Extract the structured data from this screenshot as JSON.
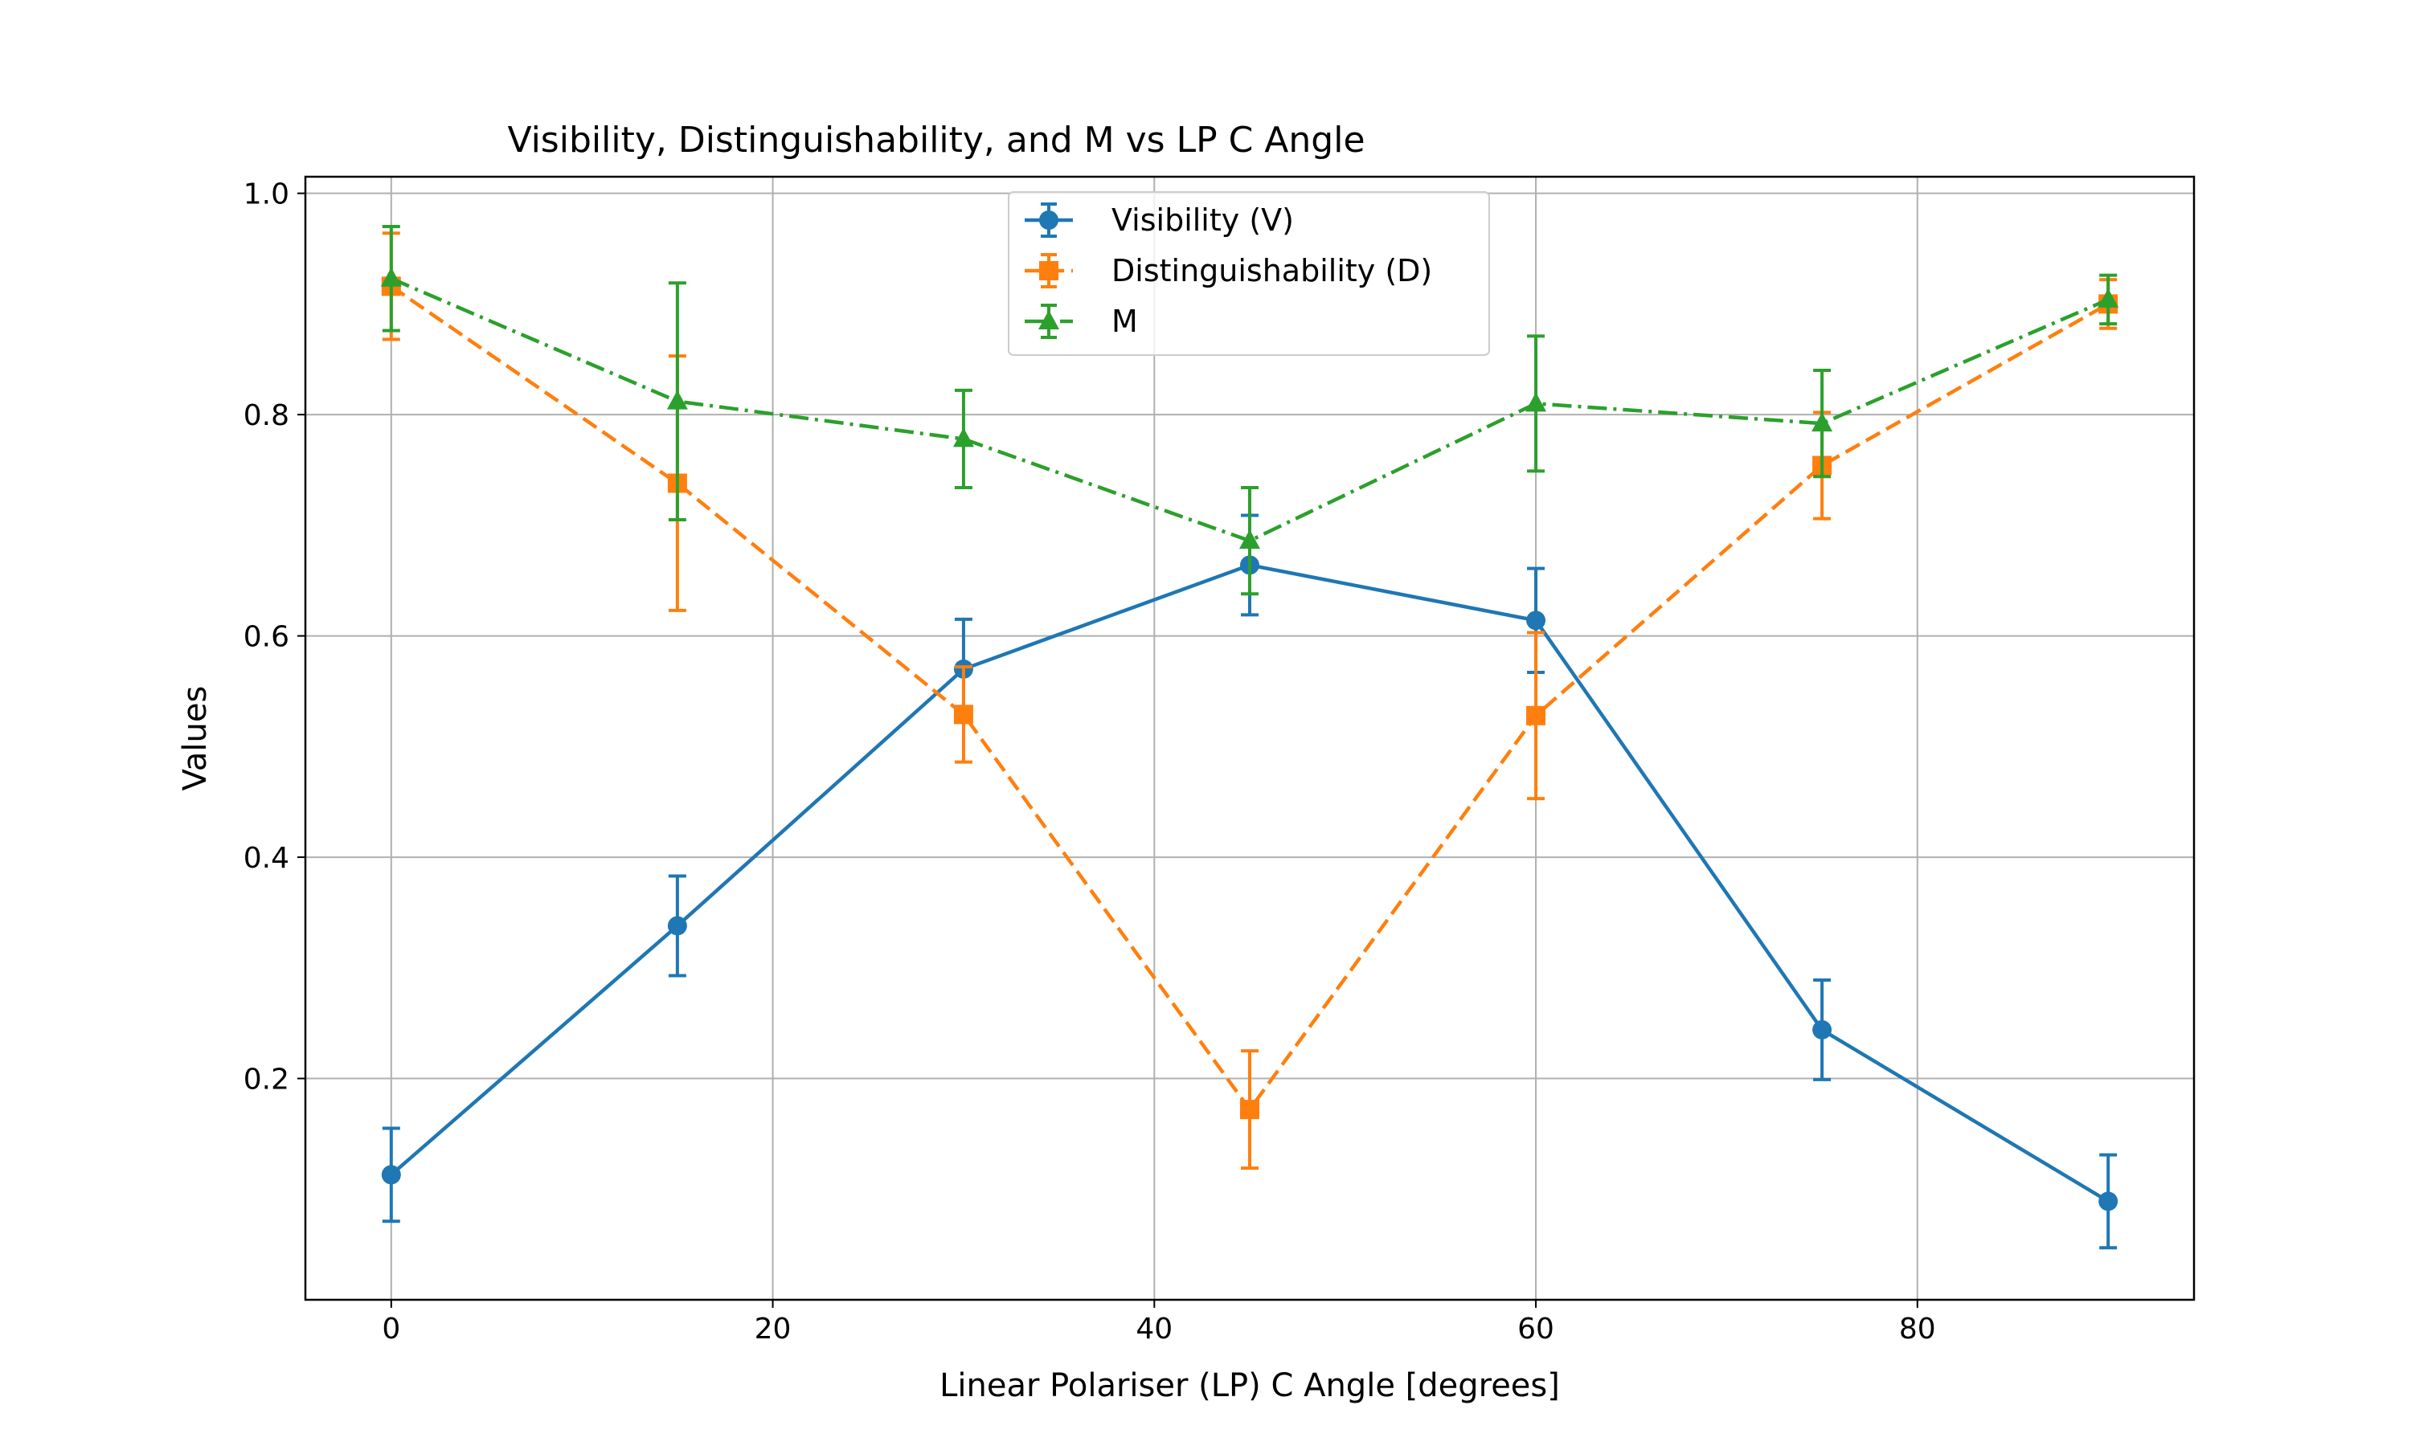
{
  "chart_data": {
    "type": "line",
    "title": "Visibility, Distinguishability, and M vs LP C Angle",
    "xlabel": "Linear Polariser (LP) C Angle [degrees]",
    "ylabel": "Values",
    "xlim": [
      -4.5,
      94.5
    ],
    "ylim": [
      0.0,
      1.015
    ],
    "xticks": [
      0,
      20,
      40,
      60,
      80
    ],
    "yticks": [
      0.2,
      0.4,
      0.6,
      0.8,
      1.0
    ],
    "grid": true,
    "legend_position": "top-center",
    "x": [
      0,
      15,
      30,
      45,
      60,
      75,
      90
    ],
    "series": [
      {
        "name": "Visibility (V)",
        "color": "#1f77b4",
        "line_style": "solid",
        "marker": "circle",
        "values": [
          0.113,
          0.338,
          0.57,
          0.664,
          0.614,
          0.244,
          0.089
        ],
        "errors": [
          0.042,
          0.045,
          0.045,
          0.045,
          0.047,
          0.045,
          0.042
        ]
      },
      {
        "name": "Distinguishability (D)",
        "color": "#ff7f0e",
        "line_style": "dashed",
        "marker": "square",
        "values": [
          0.916,
          0.738,
          0.529,
          0.172,
          0.528,
          0.754,
          0.9
        ],
        "errors": [
          0.048,
          0.115,
          0.043,
          0.053,
          0.075,
          0.048,
          0.022
        ]
      },
      {
        "name": "M",
        "color": "#2ca02c",
        "line_style": "dashdot",
        "marker": "triangle",
        "values": [
          0.923,
          0.812,
          0.778,
          0.686,
          0.81,
          0.792,
          0.904
        ],
        "errors": [
          0.047,
          0.107,
          0.044,
          0.048,
          0.061,
          0.048,
          0.022
        ]
      }
    ]
  }
}
